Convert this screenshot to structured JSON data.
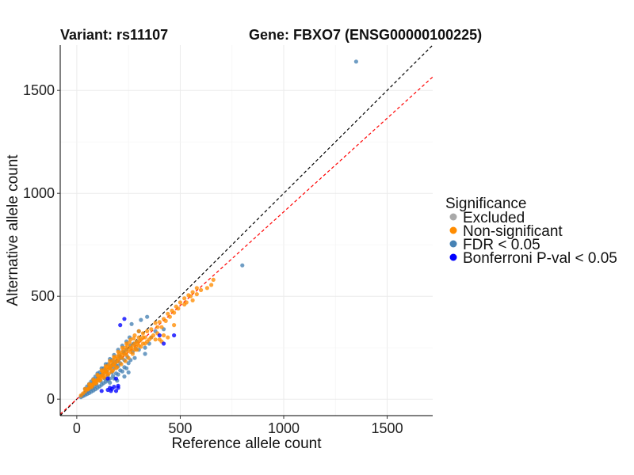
{
  "chart_data": {
    "type": "scatter",
    "title_variant": "Variant: rs11107",
    "title_gene": "Gene: FBXO7 (ENSG00000100225)",
    "xlabel": "Reference allele count",
    "ylabel": "Alternative allele count",
    "xlim": [
      -80,
      1720
    ],
    "ylim": [
      -80,
      1720
    ],
    "xticks": [
      0,
      500,
      1000,
      1500
    ],
    "yticks": [
      0,
      500,
      1000,
      1500
    ],
    "grid": true,
    "legend": {
      "title": "Significance",
      "position": "right",
      "entries": [
        {
          "label": "Excluded",
          "color": "#a9a9a9"
        },
        {
          "label": "Non-significant",
          "color": "#ff8c00"
        },
        {
          "label": "FDR < 0.05",
          "color": "#4682b4"
        },
        {
          "label": "Bonferroni P-val < 0.05",
          "color": "#0000ff"
        }
      ]
    },
    "reference_lines": [
      {
        "name": "identity",
        "slope": 1.0,
        "intercept": 0,
        "color": "#000000",
        "dash": "dashed"
      },
      {
        "name": "fit",
        "slope": 0.91,
        "intercept": 0,
        "color": "#ff0000",
        "dash": "dashed"
      }
    ],
    "series": [
      {
        "name": "FDR < 0.05",
        "color": "#4682b4",
        "points": [
          [
            1350,
            1640
          ],
          [
            800,
            650
          ],
          [
            340,
            400
          ],
          [
            310,
            385
          ],
          [
            265,
            365
          ],
          [
            300,
            330
          ],
          [
            350,
            270
          ],
          [
            330,
            250
          ],
          [
            300,
            240
          ],
          [
            330,
            220
          ],
          [
            280,
            200
          ],
          [
            260,
            190
          ],
          [
            250,
            175
          ],
          [
            230,
            155
          ],
          [
            210,
            140
          ],
          [
            190,
            125
          ],
          [
            175,
            112
          ],
          [
            160,
            100
          ],
          [
            150,
            90
          ],
          [
            140,
            85
          ],
          [
            130,
            78
          ],
          [
            120,
            70
          ],
          [
            110,
            62
          ],
          [
            100,
            55
          ],
          [
            90,
            48
          ],
          [
            80,
            42
          ],
          [
            70,
            36
          ],
          [
            60,
            30
          ],
          [
            50,
            25
          ],
          [
            40,
            20
          ],
          [
            30,
            15
          ],
          [
            20,
            10
          ],
          [
            220,
            260
          ],
          [
            200,
            240
          ],
          [
            180,
            215
          ],
          [
            160,
            195
          ],
          [
            140,
            170
          ],
          [
            120,
            150
          ],
          [
            100,
            125
          ],
          [
            90,
            110
          ],
          [
            80,
            98
          ],
          [
            70,
            86
          ],
          [
            60,
            74
          ],
          [
            50,
            62
          ],
          [
            40,
            50
          ],
          [
            240,
            280
          ],
          [
            255,
            300
          ],
          [
            180,
            150
          ],
          [
            170,
            130
          ],
          [
            200,
            160
          ],
          [
            210,
            175
          ],
          [
            190,
            165
          ],
          [
            230,
            190
          ],
          [
            245,
            205
          ],
          [
            270,
            230
          ],
          [
            285,
            245
          ],
          [
            150,
            115
          ],
          [
            135,
            100
          ],
          [
            115,
            88
          ],
          [
            95,
            72
          ],
          [
            85,
            62
          ],
          [
            75,
            55
          ],
          [
            65,
            48
          ],
          [
            55,
            40
          ],
          [
            45,
            34
          ],
          [
            35,
            26
          ],
          [
            25,
            18
          ],
          [
            130,
            150
          ],
          [
            150,
            170
          ],
          [
            170,
            190
          ],
          [
            110,
            130
          ],
          [
            230,
            220
          ],
          [
            215,
            200
          ],
          [
            195,
            185
          ],
          [
            175,
            170
          ],
          [
            160,
            150
          ],
          [
            145,
            135
          ],
          [
            125,
            118
          ],
          [
            105,
            100
          ],
          [
            88,
            85
          ],
          [
            260,
            260
          ],
          [
            275,
            270
          ],
          [
            290,
            280
          ],
          [
            240,
            240
          ],
          [
            225,
            230
          ],
          [
            205,
            210
          ],
          [
            380,
            330
          ],
          [
            420,
            340
          ],
          [
            360,
            300
          ],
          [
            200,
            120
          ],
          [
            220,
            135
          ],
          [
            240,
            150
          ],
          [
            180,
            100
          ],
          [
            160,
            80
          ],
          [
            250,
            130
          ],
          [
            230,
            110
          ],
          [
            195,
            90
          ],
          [
            210,
            200
          ],
          [
            185,
            180
          ],
          [
            165,
            160
          ],
          [
            140,
            140
          ],
          [
            120,
            120
          ],
          [
            100,
            100
          ],
          [
            80,
            80
          ],
          [
            60,
            60
          ],
          [
            45,
            45
          ]
        ]
      },
      {
        "name": "Non-significant",
        "color": "#ff8c00",
        "points": [
          [
            660,
            580
          ],
          [
            650,
            555
          ],
          [
            600,
            530
          ],
          [
            630,
            540
          ],
          [
            580,
            540
          ],
          [
            560,
            520
          ],
          [
            540,
            505
          ],
          [
            500,
            470
          ],
          [
            520,
            490
          ],
          [
            480,
            450
          ],
          [
            460,
            430
          ],
          [
            440,
            415
          ],
          [
            470,
            420
          ],
          [
            420,
            390
          ],
          [
            400,
            375
          ],
          [
            430,
            380
          ],
          [
            380,
            370
          ],
          [
            360,
            340
          ],
          [
            340,
            330
          ],
          [
            320,
            320
          ],
          [
            300,
            300
          ],
          [
            290,
            280
          ],
          [
            280,
            270
          ],
          [
            270,
            260
          ],
          [
            260,
            250
          ],
          [
            250,
            240
          ],
          [
            240,
            230
          ],
          [
            230,
            220
          ],
          [
            220,
            215
          ],
          [
            210,
            205
          ],
          [
            200,
            195
          ],
          [
            190,
            180
          ],
          [
            180,
            170
          ],
          [
            170,
            162
          ],
          [
            160,
            155
          ],
          [
            150,
            145
          ],
          [
            140,
            135
          ],
          [
            130,
            125
          ],
          [
            120,
            115
          ],
          [
            110,
            105
          ],
          [
            100,
            95
          ],
          [
            90,
            86
          ],
          [
            80,
            76
          ],
          [
            70,
            66
          ],
          [
            60,
            56
          ],
          [
            50,
            47
          ],
          [
            40,
            37
          ],
          [
            30,
            28
          ],
          [
            20,
            18
          ],
          [
            420,
            310
          ],
          [
            400,
            290
          ],
          [
            380,
            290
          ],
          [
            440,
            300
          ],
          [
            410,
            280
          ],
          [
            360,
            300
          ],
          [
            340,
            280
          ],
          [
            320,
            270
          ],
          [
            300,
            260
          ],
          [
            280,
            240
          ],
          [
            260,
            230
          ],
          [
            240,
            215
          ],
          [
            220,
            200
          ],
          [
            200,
            185
          ],
          [
            180,
            165
          ],
          [
            160,
            148
          ],
          [
            140,
            130
          ],
          [
            120,
            112
          ],
          [
            100,
            92
          ],
          [
            80,
            74
          ],
          [
            300,
            330
          ],
          [
            280,
            310
          ],
          [
            260,
            290
          ],
          [
            240,
            270
          ],
          [
            220,
            250
          ],
          [
            200,
            230
          ],
          [
            180,
            205
          ],
          [
            160,
            185
          ],
          [
            140,
            160
          ],
          [
            120,
            140
          ],
          [
            100,
            118
          ],
          [
            80,
            95
          ],
          [
            60,
            72
          ],
          [
            40,
            50
          ],
          [
            250,
            200
          ],
          [
            235,
            185
          ],
          [
            215,
            170
          ],
          [
            195,
            155
          ],
          [
            175,
            140
          ],
          [
            155,
            125
          ],
          [
            135,
            110
          ],
          [
            115,
            95
          ],
          [
            95,
            80
          ],
          [
            75,
            64
          ],
          [
            55,
            48
          ],
          [
            270,
            220
          ],
          [
            290,
            240
          ],
          [
            310,
            255
          ],
          [
            330,
            270
          ],
          [
            350,
            290
          ],
          [
            370,
            310
          ],
          [
            390,
            320
          ],
          [
            410,
            350
          ],
          [
            450,
            400
          ],
          [
            490,
            440
          ],
          [
            520,
            460
          ],
          [
            550,
            500
          ],
          [
            580,
            510
          ],
          [
            560,
            480
          ],
          [
            530,
            470
          ],
          [
            245,
            260
          ],
          [
            225,
            240
          ],
          [
            205,
            220
          ],
          [
            185,
            200
          ],
          [
            165,
            178
          ],
          [
            145,
            156
          ],
          [
            125,
            134
          ],
          [
            105,
            112
          ],
          [
            85,
            90
          ],
          [
            65,
            70
          ],
          [
            255,
            275
          ],
          [
            275,
            295
          ],
          [
            235,
            250
          ],
          [
            215,
            228
          ],
          [
            195,
            208
          ],
          [
            175,
            188
          ],
          [
            155,
            166
          ],
          [
            135,
            144
          ],
          [
            190,
            150
          ],
          [
            170,
            135
          ],
          [
            150,
            120
          ],
          [
            130,
            105
          ],
          [
            110,
            90
          ],
          [
            90,
            75
          ],
          [
            70,
            58
          ],
          [
            330,
            300
          ],
          [
            310,
            290
          ],
          [
            295,
            270
          ],
          [
            285,
            255
          ],
          [
            265,
            245
          ],
          [
            320,
            300
          ],
          [
            305,
            285
          ],
          [
            470,
            360
          ],
          [
            390,
            350
          ]
        ]
      },
      {
        "name": "Bonferroni P-val < 0.05",
        "color": "#0000ff",
        "points": [
          [
            230,
            390
          ],
          [
            470,
            310
          ],
          [
            420,
            270
          ],
          [
            190,
            100
          ],
          [
            150,
            100
          ],
          [
            200,
            65
          ],
          [
            180,
            60
          ],
          [
            160,
            55
          ],
          [
            170,
            50
          ],
          [
            190,
            40
          ],
          [
            200,
            55
          ],
          [
            150,
            45
          ],
          [
            165,
            40
          ],
          [
            400,
            310
          ],
          [
            210,
            360
          ],
          [
            120,
            40
          ]
        ]
      }
    ]
  }
}
